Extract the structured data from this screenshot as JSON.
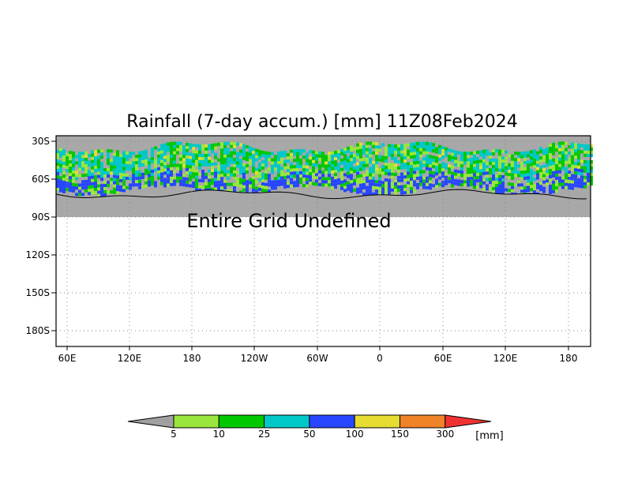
{
  "title": "Rainfall (7-day accum.) [mm] 11Z08Feb2024",
  "undefined_message": "Entire Grid Undefined",
  "map": {
    "y_tick_labels": [
      "30S",
      "60S",
      "90S",
      "120S",
      "150S",
      "180S"
    ],
    "x_tick_labels": [
      "60E",
      "120E",
      "180",
      "120W",
      "60W",
      "0",
      "60E",
      "120E",
      "180"
    ],
    "grid": "dotted",
    "colors": {
      "land": "#a8a8a8",
      "coastline": "#000000"
    }
  },
  "colorbar": {
    "unit": "[mm]",
    "levels": [
      "5",
      "10",
      "25",
      "50",
      "100",
      "150",
      "300"
    ],
    "colors": [
      "#a0a0a0",
      "#9ae63c",
      "#00c800",
      "#00c8c8",
      "#2846ff",
      "#e6dc32",
      "#f08228",
      "#f03232"
    ]
  }
}
